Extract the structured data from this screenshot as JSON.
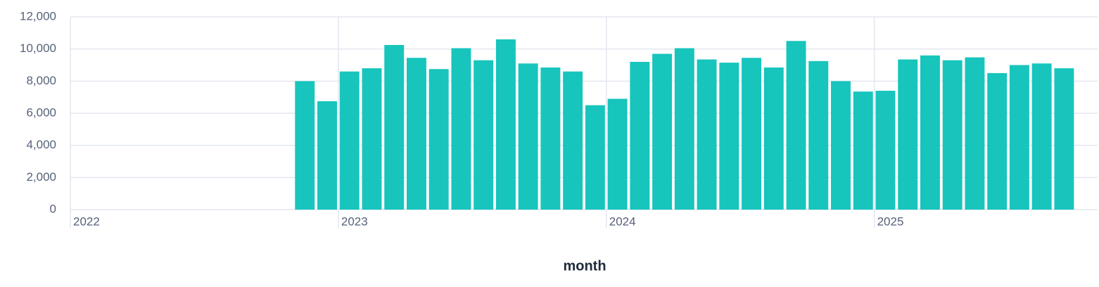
{
  "chart_data": {
    "type": "bar",
    "x_label": "month",
    "color": "#17c5bd",
    "grid": true,
    "x": [
      "2022-11",
      "2022-12",
      "2023-01",
      "2023-02",
      "2023-03",
      "2023-04",
      "2023-05",
      "2023-06",
      "2023-07",
      "2023-08",
      "2023-09",
      "2023-10",
      "2023-11",
      "2023-12",
      "2024-01",
      "2024-02",
      "2024-03",
      "2024-04",
      "2024-05",
      "2024-06",
      "2024-07",
      "2024-08",
      "2024-09",
      "2024-10",
      "2024-11",
      "2024-12",
      "2025-01",
      "2025-02",
      "2025-03",
      "2025-04",
      "2025-05",
      "2025-06",
      "2025-07",
      "2025-08",
      "2025-09"
    ],
    "values": [
      8000,
      6750,
      8600,
      8800,
      10250,
      9450,
      8750,
      10050,
      9300,
      10600,
      9100,
      8850,
      8600,
      6500,
      6900,
      9200,
      9700,
      10050,
      9350,
      9150,
      9450,
      8850,
      10500,
      9250,
      8000,
      7350,
      7400,
      9350,
      9600,
      9300,
      9480,
      8500,
      9000,
      9100,
      8800
    ],
    "xlim": [
      "2022-01",
      "2025-11"
    ],
    "xticks": [
      2022,
      2023,
      2024,
      2025
    ],
    "ylim": [
      0,
      12000
    ],
    "yticks": [
      0,
      {
        "value": 2000,
        "label": "2,000"
      },
      {
        "value": 4000,
        "label": "4,000"
      },
      {
        "value": 6000,
        "label": "6,000"
      },
      {
        "value": 8000,
        "label": "8,000"
      },
      {
        "value": 10000,
        "label": "10,000"
      },
      {
        "value": 12000,
        "label": "12,000"
      }
    ]
  }
}
